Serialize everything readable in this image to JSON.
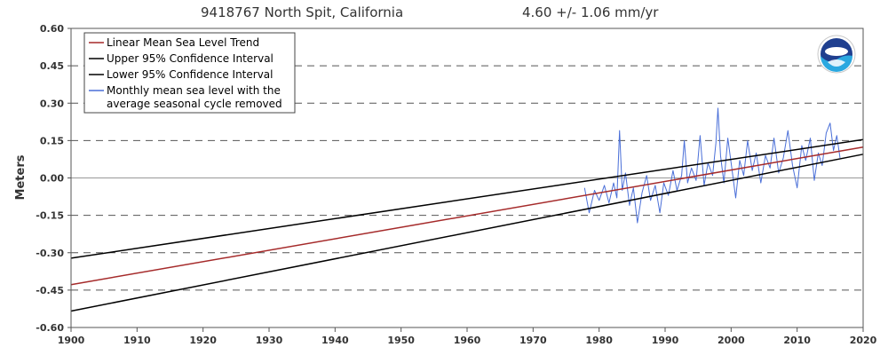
{
  "chart_data": {
    "type": "line",
    "title": "9418767 North Spit, California",
    "trend_text": "4.60 +/-  1.06 mm/yr",
    "xlabel": "",
    "ylabel": "Meters",
    "xlim": [
      1900,
      2020
    ],
    "ylim": [
      -0.6,
      0.6
    ],
    "x_ticks": [
      1900,
      1910,
      1920,
      1930,
      1940,
      1950,
      1960,
      1970,
      1980,
      1990,
      2000,
      2010,
      2020
    ],
    "y_ticks": [
      -0.6,
      -0.45,
      -0.3,
      -0.15,
      0.0,
      0.15,
      0.3,
      0.45,
      0.6
    ],
    "y_tick_labels": [
      "-0.60",
      "-0.45",
      "-0.30",
      "-0.15",
      "0.00",
      "0.15",
      "0.30",
      "0.45",
      "0.60"
    ],
    "grid": "dashed horizontal",
    "legend_position": "top-left",
    "series": [
      {
        "name": "Linear Mean Sea Level Trend",
        "color": "#a52a2a",
        "x": [
          1900,
          2020
        ],
        "y": [
          -0.428,
          0.124
        ]
      },
      {
        "name": "Upper 95% Confidence Interval",
        "color": "#000000",
        "x": [
          1900,
          2020
        ],
        "y": [
          -0.322,
          0.154
        ]
      },
      {
        "name": "Lower 95% Confidence Interval",
        "color": "#000000",
        "x": [
          1900,
          2020
        ],
        "y": [
          -0.534,
          0.095
        ]
      },
      {
        "name": "Monthly mean sea level with the average seasonal cycle removed",
        "name_lines": [
          "Monthly mean sea level with the",
          " average seasonal cycle removed"
        ],
        "color": "#4a6fd8",
        "x": [
          1977.8,
          1978.5,
          1979.3,
          1980.0,
          1980.8,
          1981.5,
          1982.2,
          1982.7,
          1983.1,
          1983.5,
          1984.0,
          1984.6,
          1985.2,
          1985.8,
          1986.5,
          1987.2,
          1987.8,
          1988.5,
          1989.2,
          1989.8,
          1990.5,
          1991.2,
          1991.8,
          1992.5,
          1992.9,
          1993.4,
          1994.0,
          1994.7,
          1995.3,
          1995.9,
          1996.5,
          1997.2,
          1997.7,
          1998.0,
          1998.4,
          1998.9,
          1999.5,
          2000.1,
          2000.7,
          2001.3,
          2001.9,
          2002.5,
          2003.2,
          2003.8,
          2004.5,
          2005.2,
          2005.9,
          2006.5,
          2007.2,
          2007.9,
          2008.6,
          2009.3,
          2010.0,
          2010.7,
          2011.3,
          2012.0,
          2012.6,
          2013.2,
          2013.8,
          2014.4,
          2015.0,
          2015.5,
          2016.0,
          2016.5
        ],
        "y": [
          -0.04,
          -0.14,
          -0.05,
          -0.09,
          -0.03,
          -0.1,
          -0.02,
          -0.08,
          0.19,
          -0.05,
          0.02,
          -0.11,
          -0.04,
          -0.18,
          -0.06,
          0.01,
          -0.09,
          -0.03,
          -0.14,
          -0.02,
          -0.07,
          0.03,
          -0.05,
          0.01,
          0.15,
          -0.02,
          0.04,
          -0.01,
          0.17,
          -0.03,
          0.06,
          0.01,
          0.14,
          0.28,
          0.09,
          -0.02,
          0.16,
          0.04,
          -0.08,
          0.07,
          0.01,
          0.15,
          0.03,
          0.1,
          -0.02,
          0.09,
          0.04,
          0.16,
          0.02,
          0.08,
          0.19,
          0.05,
          -0.04,
          0.13,
          0.07,
          0.16,
          -0.01,
          0.1,
          0.05,
          0.18,
          0.22,
          0.11,
          0.17,
          0.08
        ]
      }
    ]
  }
}
